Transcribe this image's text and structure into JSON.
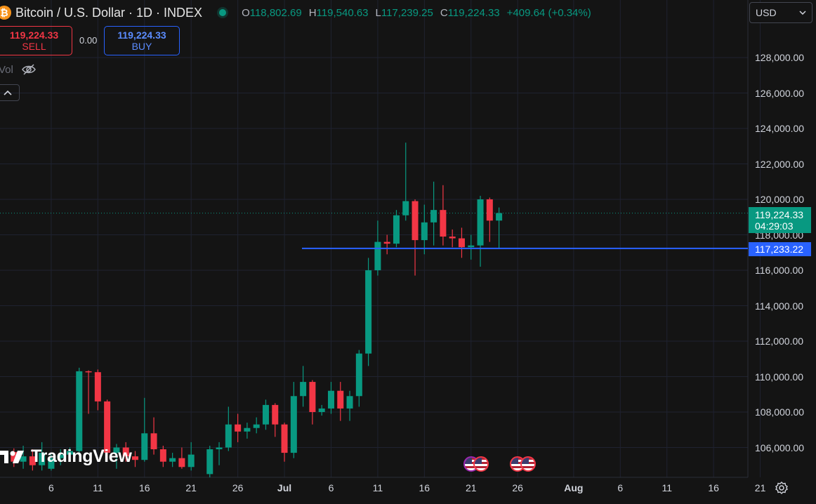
{
  "header": {
    "icon_letter": "₿",
    "title": "Bitcoin / U.S. Dollar · 1D · INDEX",
    "open_label": "O",
    "open": "118,802.69",
    "high_label": "H",
    "high": "119,540.63",
    "low_label": "L",
    "low": "117,239.25",
    "close_label": "C",
    "close": "119,224.33",
    "change": "+409.64 (+0.34%)"
  },
  "trade": {
    "sell_price": "119,224.33",
    "sell_label": "SELL",
    "spread": "0.00",
    "buy_price": "119,224.33",
    "buy_label": "BUY"
  },
  "indicator": {
    "vol_label": "Vol"
  },
  "currency": {
    "selected": "USD"
  },
  "price_tag": {
    "price": "119,224.33",
    "countdown": "04:29:03"
  },
  "horizontal_line": {
    "price": 117233.22,
    "label": "117,233.22"
  },
  "watermark": "TradingView",
  "colors": {
    "up": "#089981",
    "down": "#f23645",
    "line": "#2962ff",
    "background": "#141414"
  },
  "chart_data": {
    "type": "candlestick",
    "title": "Bitcoin / U.S. Dollar · 1D · INDEX",
    "y_ticks": [
      "106,000.00",
      "108,000.00",
      "110,000.00",
      "112,000.00",
      "114,000.00",
      "116,000.00",
      "118,000.00",
      "120,000.00",
      "122,000.00",
      "124,000.00",
      "126,000.00",
      "128,000.00"
    ],
    "x_ticks": [
      "6",
      "11",
      "16",
      "21",
      "26",
      "Jul",
      "6",
      "11",
      "16",
      "21",
      "26",
      "Aug",
      "6",
      "11",
      "16",
      "21"
    ],
    "x_range": [
      "2025-06-01",
      "2025-08-24"
    ],
    "y_range": [
      104700,
      129000
    ],
    "grid": true,
    "candles": [
      {
        "date": "2025-06-02",
        "o": 105750,
        "h": 105950,
        "l": 104900,
        "c": 105200
      },
      {
        "date": "2025-06-03",
        "o": 105200,
        "h": 106100,
        "l": 104800,
        "c": 105500
      },
      {
        "date": "2025-06-04",
        "o": 105500,
        "h": 105900,
        "l": 104700,
        "c": 105000
      },
      {
        "date": "2025-06-05",
        "o": 105000,
        "h": 106300,
        "l": 104700,
        "c": 105700
      },
      {
        "date": "2025-06-06",
        "o": 104800,
        "h": 105600,
        "l": 104700,
        "c": 105400
      },
      {
        "date": "2025-06-07",
        "o": 105400,
        "h": 105900,
        "l": 105000,
        "c": 105600
      },
      {
        "date": "2025-06-08",
        "o": 105600,
        "h": 106000,
        "l": 105200,
        "c": 105800
      },
      {
        "date": "2025-06-09",
        "o": 105800,
        "h": 110500,
        "l": 105600,
        "c": 110300
      },
      {
        "date": "2025-06-10",
        "o": 110300,
        "h": 110350,
        "l": 107900,
        "c": 110250
      },
      {
        "date": "2025-06-11",
        "o": 110250,
        "h": 110400,
        "l": 108100,
        "c": 108600
      },
      {
        "date": "2025-06-12",
        "o": 108600,
        "h": 108700,
        "l": 105300,
        "c": 105700
      },
      {
        "date": "2025-06-13",
        "o": 105700,
        "h": 106200,
        "l": 104800,
        "c": 106000
      },
      {
        "date": "2025-06-14",
        "o": 106000,
        "h": 106300,
        "l": 105200,
        "c": 105500
      },
      {
        "date": "2025-06-15",
        "o": 105500,
        "h": 105800,
        "l": 104900,
        "c": 105300
      },
      {
        "date": "2025-06-16",
        "o": 105300,
        "h": 108800,
        "l": 105200,
        "c": 106800
      },
      {
        "date": "2025-06-17",
        "o": 106800,
        "h": 107700,
        "l": 105600,
        "c": 105900
      },
      {
        "date": "2025-06-18",
        "o": 105900,
        "h": 106100,
        "l": 104900,
        "c": 105200
      },
      {
        "date": "2025-06-19",
        "o": 105200,
        "h": 105700,
        "l": 104900,
        "c": 105400
      },
      {
        "date": "2025-06-20",
        "o": 105400,
        "h": 106000,
        "l": 104800,
        "c": 104900
      },
      {
        "date": "2025-06-21",
        "o": 104900,
        "h": 106300,
        "l": 104700,
        "c": 105600
      },
      {
        "date": "2025-06-23",
        "o": 104500,
        "h": 106100,
        "l": 104300,
        "c": 105900
      },
      {
        "date": "2025-06-24",
        "o": 105900,
        "h": 106300,
        "l": 105000,
        "c": 106000
      },
      {
        "date": "2025-06-25",
        "o": 106000,
        "h": 108300,
        "l": 105800,
        "c": 107300
      },
      {
        "date": "2025-06-26",
        "o": 107300,
        "h": 107900,
        "l": 106300,
        "c": 106900
      },
      {
        "date": "2025-06-27",
        "o": 106900,
        "h": 107400,
        "l": 106500,
        "c": 107100
      },
      {
        "date": "2025-06-28",
        "o": 107100,
        "h": 107700,
        "l": 106800,
        "c": 107300
      },
      {
        "date": "2025-06-29",
        "o": 107300,
        "h": 108700,
        "l": 107000,
        "c": 108400
      },
      {
        "date": "2025-06-30",
        "o": 108400,
        "h": 108500,
        "l": 106600,
        "c": 107300
      },
      {
        "date": "2025-07-01",
        "o": 107300,
        "h": 107400,
        "l": 105200,
        "c": 105700
      },
      {
        "date": "2025-07-02",
        "o": 105700,
        "h": 109700,
        "l": 105400,
        "c": 108900
      },
      {
        "date": "2025-07-03",
        "o": 108900,
        "h": 110600,
        "l": 108300,
        "c": 109700
      },
      {
        "date": "2025-07-04",
        "o": 109700,
        "h": 109800,
        "l": 107300,
        "c": 108000
      },
      {
        "date": "2025-07-05",
        "o": 108000,
        "h": 108400,
        "l": 107800,
        "c": 108200
      },
      {
        "date": "2025-07-06",
        "o": 108200,
        "h": 109700,
        "l": 107900,
        "c": 109200
      },
      {
        "date": "2025-07-07",
        "o": 109200,
        "h": 109700,
        "l": 107500,
        "c": 108200
      },
      {
        "date": "2025-07-08",
        "o": 108200,
        "h": 109200,
        "l": 107500,
        "c": 108900
      },
      {
        "date": "2025-07-09",
        "o": 108900,
        "h": 111500,
        "l": 108300,
        "c": 111300
      },
      {
        "date": "2025-07-10",
        "o": 111300,
        "h": 116700,
        "l": 110600,
        "c": 116000
      },
      {
        "date": "2025-07-11",
        "o": 116000,
        "h": 118800,
        "l": 115700,
        "c": 117600
      },
      {
        "date": "2025-07-12",
        "o": 117600,
        "h": 118000,
        "l": 116900,
        "c": 117500
      },
      {
        "date": "2025-07-13",
        "o": 117500,
        "h": 119400,
        "l": 117300,
        "c": 119100
      },
      {
        "date": "2025-07-14",
        "o": 119100,
        "h": 123200,
        "l": 118800,
        "c": 119900
      },
      {
        "date": "2025-07-15",
        "o": 119900,
        "h": 120000,
        "l": 115700,
        "c": 117700
      },
      {
        "date": "2025-07-16",
        "o": 117700,
        "h": 119700,
        "l": 116900,
        "c": 118700
      },
      {
        "date": "2025-07-17",
        "o": 118700,
        "h": 121000,
        "l": 117400,
        "c": 119400
      },
      {
        "date": "2025-07-18",
        "o": 119400,
        "h": 120800,
        "l": 117400,
        "c": 117900
      },
      {
        "date": "2025-07-19",
        "o": 117900,
        "h": 118300,
        "l": 117300,
        "c": 117800
      },
      {
        "date": "2025-07-20",
        "o": 117800,
        "h": 118400,
        "l": 116700,
        "c": 117300
      },
      {
        "date": "2025-07-21",
        "o": 117300,
        "h": 118000,
        "l": 116600,
        "c": 117400
      },
      {
        "date": "2025-07-22",
        "o": 117400,
        "h": 120200,
        "l": 116200,
        "c": 120000
      },
      {
        "date": "2025-07-23",
        "o": 120000,
        "h": 120100,
        "l": 117600,
        "c": 118800
      },
      {
        "date": "2025-07-24",
        "o": 118802.69,
        "h": 119540.63,
        "l": 117239.25,
        "c": 119224.33
      }
    ]
  }
}
